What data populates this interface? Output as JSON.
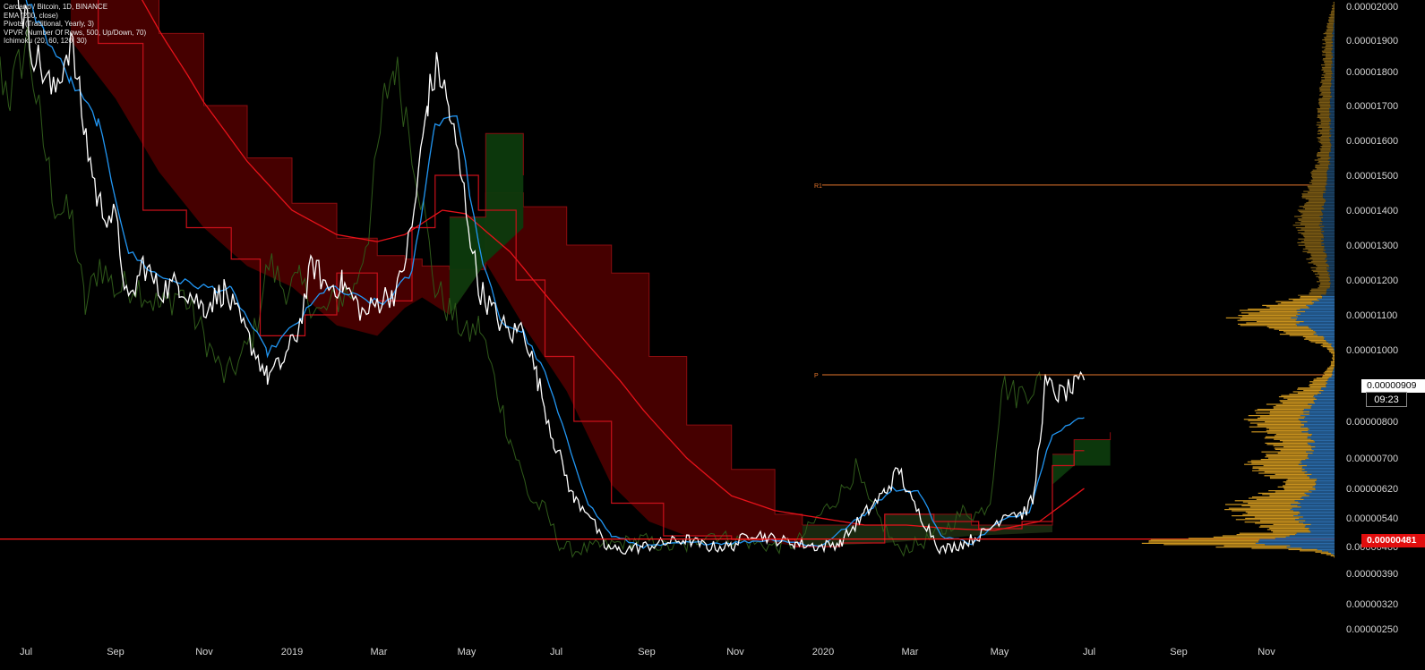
{
  "legend": {
    "symbol": "Cardano / Bitcoin, 1D, BINANCE",
    "ema": "EMA (200, close)",
    "pivots": "Pivots (Traditional, Yearly, 3)",
    "vpvr": "VPVR (Number Of Rows, 500, Up/Down, 70)",
    "ichimoku": "Ichimoku (20, 60, 120, 30)"
  },
  "colors": {
    "background": "#000000",
    "price_line": "#ffffff",
    "conversion_line": "#2196f3",
    "base_line": "#c8101a",
    "ema_line": "#e8121a",
    "lagging_span": "#2f5a1a",
    "cloud_bear": "#4a0000",
    "cloud_bull": "#0d3a0d",
    "pivot_line": "#e5762c",
    "support_line": "#ff1a1a",
    "vpvr_up": "#2a6aa8",
    "vpvr_down": "#c8921e",
    "axis_text": "#d6d6d6"
  },
  "current_price": {
    "last_label": "0.00000909",
    "countdown": "09:23",
    "horizontal_label": "0.00000481"
  },
  "pivot_labels": {
    "r1": "R1",
    "p": "P"
  },
  "chart_data": {
    "type": "line",
    "x_ticks": [
      "Jul",
      "Sep",
      "Nov",
      "2019",
      "Mar",
      "May",
      "Jul",
      "Sep",
      "Nov",
      "2020",
      "Mar",
      "May",
      "Jul",
      "Sep",
      "Nov"
    ],
    "y_ticks": [
      "0.00002000",
      "0.00001900",
      "0.00001800",
      "0.00001700",
      "0.00001600",
      "0.00001500",
      "0.00001400",
      "0.00001300",
      "0.00001200",
      "0.00001100",
      "0.00001000",
      "0.00000800",
      "0.00000700",
      "0.00000620",
      "0.00000540",
      "0.00000460",
      "0.00000390",
      "0.00000320",
      "0.00000250"
    ],
    "pivots": {
      "R1": 1.472e-05,
      "P": 9.25e-06
    },
    "horizontal_level": 4.81e-06,
    "series": [
      {
        "name": "Close",
        "points": [
          [
            "2018-06-20",
            2.15e-05
          ],
          [
            "2018-07-05",
            1.88e-05
          ],
          [
            "2018-07-20",
            1.73e-05
          ],
          [
            "2018-08-01",
            1.9e-05
          ],
          [
            "2018-08-10",
            1.64e-05
          ],
          [
            "2018-08-20",
            1.42e-05
          ],
          [
            "2018-09-01",
            1.37e-05
          ],
          [
            "2018-09-10",
            1.12e-05
          ],
          [
            "2018-09-20",
            1.25e-05
          ],
          [
            "2018-10-01",
            1.17e-05
          ],
          [
            "2018-10-15",
            1.19e-05
          ],
          [
            "2018-11-01",
            1.12e-05
          ],
          [
            "2018-11-15",
            1.17e-05
          ],
          [
            "2018-12-01",
            1.04e-05
          ],
          [
            "2018-12-15",
            9.2e-06
          ],
          [
            "2018-12-25",
            9.6e-06
          ],
          [
            "2019-01-05",
            1.05e-05
          ],
          [
            "2019-01-15",
            1.25e-05
          ],
          [
            "2019-01-25",
            1.18e-05
          ],
          [
            "2019-02-05",
            1.19e-05
          ],
          [
            "2019-02-20",
            1.1e-05
          ],
          [
            "2019-03-05",
            1.15e-05
          ],
          [
            "2019-03-15",
            1.17e-05
          ],
          [
            "2019-03-25",
            1.35e-05
          ],
          [
            "2019-04-05",
            1.72e-05
          ],
          [
            "2019-04-12",
            1.82e-05
          ],
          [
            "2019-04-20",
            1.68e-05
          ],
          [
            "2019-04-30",
            1.45e-05
          ],
          [
            "2019-05-10",
            1.18e-05
          ],
          [
            "2019-05-20",
            1.11e-05
          ],
          [
            "2019-06-01",
            1.04e-05
          ],
          [
            "2019-06-10",
            1.07e-05
          ],
          [
            "2019-06-20",
            9.1e-06
          ],
          [
            "2019-07-01",
            7.5e-06
          ],
          [
            "2019-07-15",
            5.9e-06
          ],
          [
            "2019-07-25",
            5.6e-06
          ],
          [
            "2019-08-05",
            4.6e-06
          ],
          [
            "2019-08-15",
            4.5e-06
          ],
          [
            "2019-09-01",
            4.6e-06
          ],
          [
            "2019-09-15",
            4.7e-06
          ],
          [
            "2019-10-01",
            4.8e-06
          ],
          [
            "2019-10-15",
            4.6e-06
          ],
          [
            "2019-11-01",
            4.6e-06
          ],
          [
            "2019-11-15",
            5e-06
          ],
          [
            "2019-12-01",
            4.8e-06
          ],
          [
            "2019-12-15",
            4.7e-06
          ],
          [
            "2020-01-01",
            4.6e-06
          ],
          [
            "2020-01-15",
            4.7e-06
          ],
          [
            "2020-02-01",
            5.5e-06
          ],
          [
            "2020-02-15",
            6.1e-06
          ],
          [
            "2020-02-25",
            6.7e-06
          ],
          [
            "2020-03-05",
            5.8e-06
          ],
          [
            "2020-03-15",
            5.2e-06
          ],
          [
            "2020-03-25",
            4.5e-06
          ],
          [
            "2020-04-10",
            4.7e-06
          ],
          [
            "2020-04-25",
            5e-06
          ],
          [
            "2020-05-10",
            5.6e-06
          ],
          [
            "2020-05-20",
            5.5e-06
          ],
          [
            "2020-05-28",
            5.9e-06
          ],
          [
            "2020-06-05",
            9e-06
          ],
          [
            "2020-06-15",
            8.7e-06
          ],
          [
            "2020-06-25",
            8.9e-06
          ],
          [
            "2020-07-02",
            9.09e-06
          ]
        ]
      },
      {
        "name": "Conversion",
        "points": [
          [
            "2018-06-20",
            2.12e-05
          ],
          [
            "2018-07-10",
            1.95e-05
          ],
          [
            "2018-08-01",
            1.77e-05
          ],
          [
            "2018-08-20",
            1.65e-05
          ],
          [
            "2018-09-10",
            1.28e-05
          ],
          [
            "2018-10-01",
            1.21e-05
          ],
          [
            "2018-11-01",
            1.18e-05
          ],
          [
            "2018-11-20",
            1.17e-05
          ],
          [
            "2018-12-15",
            9.9e-06
          ],
          [
            "2019-01-05",
            1.08e-05
          ],
          [
            "2019-01-25",
            1.18e-05
          ],
          [
            "2019-02-15",
            1.15e-05
          ],
          [
            "2019-03-05",
            1.13e-05
          ],
          [
            "2019-03-25",
            1.22e-05
          ],
          [
            "2019-04-10",
            1.65e-05
          ],
          [
            "2019-04-25",
            1.68e-05
          ],
          [
            "2019-05-10",
            1.3e-05
          ],
          [
            "2019-05-25",
            1.08e-05
          ],
          [
            "2019-06-10",
            1.05e-05
          ],
          [
            "2019-06-25",
            9.3e-06
          ],
          [
            "2019-07-10",
            7.5e-06
          ],
          [
            "2019-07-25",
            5.8e-06
          ],
          [
            "2019-08-10",
            4.9e-06
          ],
          [
            "2019-09-01",
            4.6e-06
          ],
          [
            "2019-10-01",
            4.7e-06
          ],
          [
            "2019-11-01",
            4.7e-06
          ],
          [
            "2019-12-01",
            4.8e-06
          ],
          [
            "2020-01-01",
            4.6e-06
          ],
          [
            "2020-02-01",
            5.5e-06
          ],
          [
            "2020-02-20",
            6.2e-06
          ],
          [
            "2020-03-10",
            6.1e-06
          ],
          [
            "2020-03-25",
            4.9e-06
          ],
          [
            "2020-04-15",
            4.7e-06
          ],
          [
            "2020-05-05",
            5.3e-06
          ],
          [
            "2020-05-25",
            5.6e-06
          ],
          [
            "2020-06-10",
            7.7e-06
          ],
          [
            "2020-07-02",
            8.1e-06
          ]
        ]
      },
      {
        "name": "EMA 200",
        "points": [
          [
            "2018-08-20",
            2.25e-05
          ],
          [
            "2018-10-01",
            1.93e-05
          ],
          [
            "2018-11-01",
            1.71e-05
          ],
          [
            "2018-12-01",
            1.54e-05
          ],
          [
            "2019-01-01",
            1.4e-05
          ],
          [
            "2019-02-01",
            1.33e-05
          ],
          [
            "2019-03-01",
            1.31e-05
          ],
          [
            "2019-03-20",
            1.33e-05
          ],
          [
            "2019-04-15",
            1.4e-05
          ],
          [
            "2019-05-01",
            1.39e-05
          ],
          [
            "2019-06-01",
            1.28e-05
          ],
          [
            "2019-07-01",
            1.13e-05
          ],
          [
            "2019-08-01",
            9.8e-06
          ],
          [
            "2019-09-01",
            8.3e-06
          ],
          [
            "2019-10-01",
            7e-06
          ],
          [
            "2019-11-01",
            6e-06
          ],
          [
            "2019-12-01",
            5.6e-06
          ],
          [
            "2020-01-01",
            5.4e-06
          ],
          [
            "2020-02-01",
            5.2e-06
          ],
          [
            "2020-03-01",
            5.2e-06
          ],
          [
            "2020-04-01",
            5.1e-06
          ],
          [
            "2020-05-01",
            5.05e-06
          ],
          [
            "2020-06-01",
            5.3e-06
          ],
          [
            "2020-07-02",
            6.2e-06
          ]
        ]
      }
    ]
  }
}
